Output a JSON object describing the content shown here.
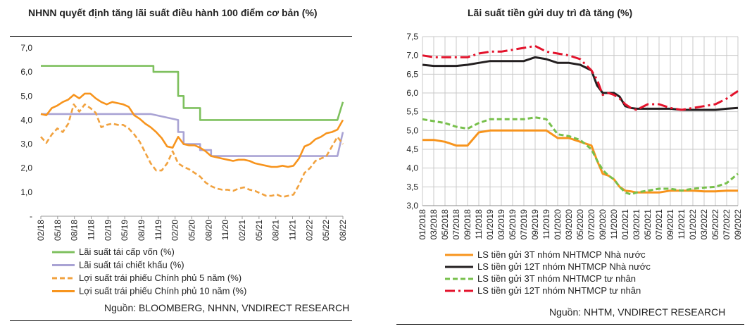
{
  "charts": [
    {
      "title": "NHNN quyết định tăng lãi suất điều hành 100 điểm cơ bản (%)",
      "source": "Nguồn: BLOOMBERG, NHNN, VNDIRECT RESEARCH"
    },
    {
      "title": "Lãi suất tiền gửi duy trì đà tăng (%)",
      "source": "Nguồn: NHTM, VNDIRECT RESEARCH"
    }
  ],
  "chart_data": [
    {
      "type": "line",
      "title": "NHNN quyết định tăng lãi suất điều hành 100 điểm cơ bản (%)",
      "x_ticks": [
        "02/18",
        "05/18",
        "08/18",
        "11/18",
        "02/19",
        "05/19",
        "08/19",
        "11/19",
        "02/20",
        "05/20",
        "08/20",
        "11/20",
        "02/21",
        "05/21",
        "08/21",
        "11/21",
        "02/22",
        "05/22",
        "08/22"
      ],
      "y_ticks": [
        "-",
        "1,0",
        "2,0",
        "3,0",
        "4,0",
        "5,0",
        "6,0",
        "7,0"
      ],
      "ylim": [
        0,
        7
      ],
      "xlim": [
        0,
        55
      ],
      "series": [
        {
          "name": "Lãi suất tái cấp vốn (%)",
          "color": "#7ec05e",
          "dash": "solid",
          "x": [
            0,
            20.5,
            20.5,
            25,
            25,
            26,
            26,
            29,
            29,
            32,
            32,
            54,
            55
          ],
          "y": [
            6.25,
            6.25,
            6.0,
            6.0,
            5.0,
            5.0,
            4.5,
            4.5,
            4.0,
            4.0,
            4.0,
            4.0,
            4.75
          ]
        },
        {
          "name": "Lãi suất tái chiết khấu (%)",
          "color": "#a9a3d4",
          "dash": "solid",
          "x": [
            0,
            20,
            25,
            25,
            26,
            26,
            29,
            29,
            31,
            31,
            54,
            55
          ],
          "y": [
            4.25,
            4.25,
            4.0,
            3.5,
            3.5,
            3.0,
            3.0,
            2.75,
            2.75,
            2.5,
            2.5,
            3.5
          ]
        },
        {
          "name": "Lợi suất trái phiếu Chính phủ 5 năm (%)",
          "color": "#f1a23f",
          "dash": "dashed",
          "x": [
            0,
            1,
            2,
            3,
            4,
            5,
            6,
            7,
            8,
            9,
            10,
            11,
            12,
            13,
            14,
            15,
            16,
            17,
            18,
            19,
            20,
            21,
            22,
            23,
            24,
            25,
            26,
            27,
            28,
            29,
            30,
            31,
            32,
            33,
            34,
            35,
            36,
            37,
            38,
            39,
            40,
            41,
            42,
            43,
            44,
            45,
            46,
            47,
            48,
            49,
            50,
            51,
            52,
            53,
            54,
            55
          ],
          "y": [
            3.3,
            3.05,
            3.4,
            3.65,
            3.5,
            3.85,
            4.65,
            4.35,
            4.65,
            4.5,
            4.3,
            3.7,
            3.8,
            3.85,
            3.8,
            3.8,
            3.65,
            3.4,
            3.1,
            2.65,
            2.2,
            1.9,
            1.9,
            2.2,
            2.7,
            2.2,
            2.05,
            1.95,
            1.8,
            1.65,
            1.4,
            1.25,
            1.15,
            1.1,
            1.1,
            1.05,
            1.15,
            1.2,
            1.1,
            1.05,
            0.95,
            0.85,
            0.85,
            0.9,
            0.8,
            0.85,
            0.9,
            1.3,
            1.8,
            2.0,
            2.3,
            2.4,
            2.5,
            2.9,
            3.3,
            3.0
          ]
        },
        {
          "name": "Lợi suất trái phiếu Chính phủ 10 năm (%)",
          "color": "#f7941d",
          "dash": "solid",
          "x": [
            0,
            1,
            2,
            3,
            4,
            5,
            6,
            7,
            8,
            9,
            10,
            11,
            12,
            13,
            14,
            15,
            16,
            17,
            18,
            19,
            20,
            21,
            22,
            23,
            24,
            25,
            26,
            27,
            28,
            29,
            30,
            31,
            32,
            33,
            34,
            35,
            36,
            37,
            38,
            39,
            40,
            41,
            42,
            43,
            44,
            45,
            46,
            47,
            48,
            49,
            50,
            51,
            52,
            53,
            54,
            55
          ],
          "y": [
            4.25,
            4.2,
            4.5,
            4.6,
            4.75,
            4.85,
            5.05,
            4.9,
            5.1,
            5.1,
            4.9,
            4.75,
            4.65,
            4.75,
            4.7,
            4.65,
            4.55,
            4.2,
            4.05,
            3.85,
            3.7,
            3.5,
            3.25,
            2.9,
            2.85,
            3.3,
            3.0,
            2.95,
            2.95,
            2.85,
            2.7,
            2.5,
            2.45,
            2.4,
            2.35,
            2.3,
            2.35,
            2.35,
            2.3,
            2.2,
            2.15,
            2.1,
            2.05,
            2.05,
            2.1,
            2.05,
            2.1,
            2.4,
            2.9,
            3.0,
            3.2,
            3.3,
            3.45,
            3.5,
            3.6,
            4.0
          ]
        }
      ],
      "legend_position": "bottom"
    },
    {
      "type": "line",
      "title": "Lãi suất tiền gửi duy trì đà tăng (%)",
      "x_ticks": [
        "01/2018",
        "03/2018",
        "05/2018",
        "07/2018",
        "09/2018",
        "11/2018",
        "01/2019",
        "03/2019",
        "05/2019",
        "07/2019",
        "09/2019",
        "11/2019",
        "01/2020",
        "03/2020",
        "05/2020",
        "07/2020",
        "09/2020",
        "11/2020",
        "01/2021",
        "03/2021",
        "05/2021",
        "07/2021",
        "09/2021",
        "11/2021",
        "01/2022",
        "03/2022",
        "05/2022",
        "07/2022",
        "09/2022"
      ],
      "y_ticks": [
        "3,0",
        "3,5",
        "4,0",
        "4,5",
        "5,0",
        "5,5",
        "6,0",
        "6,5",
        "7,0",
        "7,5"
      ],
      "ylim": [
        3.0,
        7.5
      ],
      "xlim": [
        0,
        56
      ],
      "series": [
        {
          "name": "LS tiền gửi 3T nhóm NHTMCP Nhà nước",
          "color": "#f7941d",
          "dash": "solid",
          "x": [
            0,
            2,
            4,
            6,
            8,
            10,
            12,
            14,
            16,
            18,
            20,
            22,
            24,
            26,
            28,
            30,
            31,
            32,
            33,
            34,
            35,
            36,
            37,
            38,
            40,
            42,
            44,
            46,
            48,
            50,
            52,
            54,
            56
          ],
          "y": [
            4.75,
            4.75,
            4.7,
            4.6,
            4.6,
            4.95,
            5.0,
            5.0,
            5.0,
            5.0,
            5.0,
            5.0,
            4.8,
            4.8,
            4.7,
            4.6,
            4.2,
            3.85,
            3.8,
            3.7,
            3.5,
            3.4,
            3.38,
            3.35,
            3.35,
            3.35,
            3.4,
            3.4,
            3.4,
            3.38,
            3.38,
            3.4,
            3.4
          ]
        },
        {
          "name": "LS tiền gửi 12T nhóm NHTMCP Nhà nước",
          "color": "#231f20",
          "dash": "solid",
          "x": [
            0,
            2,
            4,
            6,
            8,
            10,
            12,
            14,
            16,
            18,
            20,
            22,
            24,
            26,
            28,
            30,
            31,
            32,
            33,
            34,
            35,
            36,
            37,
            38,
            40,
            42,
            44,
            46,
            48,
            50,
            52,
            54,
            56
          ],
          "y": [
            6.75,
            6.72,
            6.72,
            6.72,
            6.75,
            6.8,
            6.85,
            6.85,
            6.85,
            6.85,
            6.95,
            6.9,
            6.8,
            6.8,
            6.75,
            6.6,
            6.2,
            6.0,
            6.0,
            6.0,
            5.9,
            5.65,
            5.6,
            5.58,
            5.58,
            5.58,
            5.58,
            5.55,
            5.55,
            5.55,
            5.55,
            5.58,
            5.6
          ]
        },
        {
          "name": "LS tiền gửi 3T nhóm NHTMCP tư nhân",
          "color": "#77c04b",
          "dash": "dashed",
          "x": [
            0,
            2,
            4,
            6,
            8,
            10,
            12,
            14,
            16,
            18,
            20,
            22,
            24,
            26,
            28,
            30,
            31,
            32,
            33,
            34,
            35,
            36,
            37,
            38,
            40,
            42,
            44,
            46,
            48,
            50,
            52,
            54,
            56
          ],
          "y": [
            5.3,
            5.25,
            5.2,
            5.1,
            5.05,
            5.2,
            5.3,
            5.3,
            5.3,
            5.3,
            5.35,
            5.3,
            4.9,
            4.85,
            4.75,
            4.5,
            4.2,
            3.95,
            3.8,
            3.7,
            3.5,
            3.35,
            3.3,
            3.35,
            3.4,
            3.45,
            3.45,
            3.4,
            3.45,
            3.48,
            3.5,
            3.6,
            3.85
          ]
        },
        {
          "name": "LS tiền gửi 12T nhóm NHTMCP tư nhân",
          "color": "#e3122b",
          "dash": "dashdot",
          "x": [
            0,
            2,
            4,
            6,
            8,
            10,
            12,
            14,
            16,
            18,
            20,
            22,
            24,
            26,
            28,
            30,
            31,
            32,
            33,
            34,
            35,
            36,
            37,
            38,
            40,
            42,
            44,
            46,
            48,
            50,
            52,
            54,
            56
          ],
          "y": [
            7.0,
            6.95,
            6.95,
            6.95,
            6.95,
            7.05,
            7.1,
            7.1,
            7.15,
            7.2,
            7.25,
            7.1,
            7.05,
            7.0,
            6.9,
            6.6,
            6.35,
            5.95,
            6.0,
            5.95,
            5.85,
            5.7,
            5.6,
            5.55,
            5.7,
            5.7,
            5.6,
            5.55,
            5.6,
            5.65,
            5.7,
            5.85,
            6.05
          ]
        }
      ],
      "legend_position": "bottom"
    }
  ]
}
